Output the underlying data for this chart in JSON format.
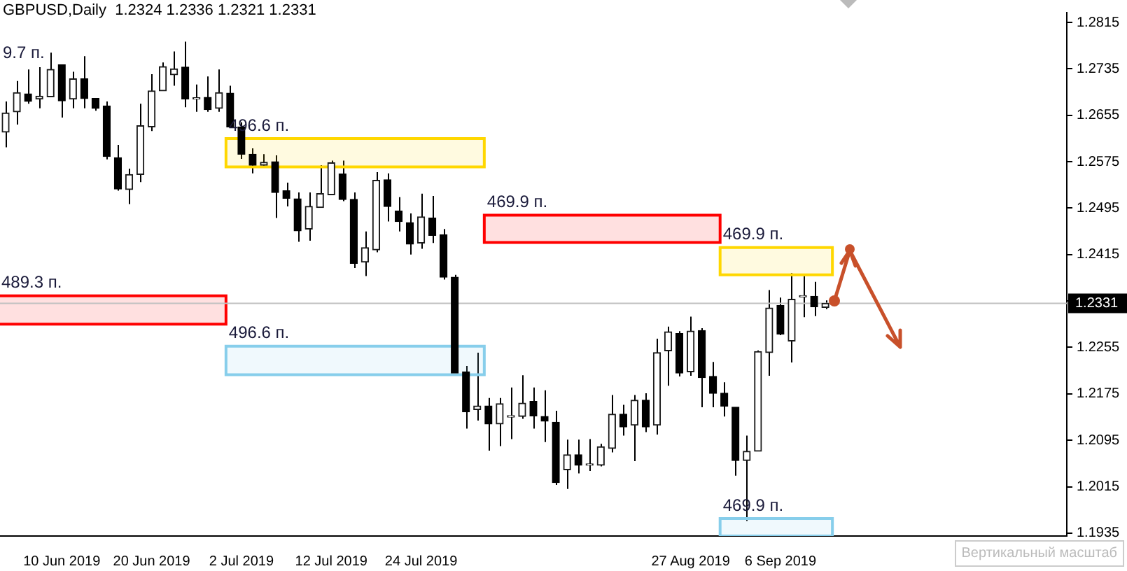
{
  "chart_data": {
    "type": "candlestick",
    "title": "GBPUSD,Daily  1.2324 1.2336 1.2321 1.2331",
    "categories": [
      null,
      null,
      null,
      null,
      null,
      "10 Jun 2019",
      null,
      null,
      null,
      null,
      null,
      null,
      null,
      "20 Jun 2019",
      null,
      null,
      null,
      null,
      null,
      null,
      null,
      "2 Jul 2019",
      null,
      null,
      null,
      null,
      null,
      null,
      null,
      "12 Jul 2019",
      null,
      null,
      null,
      null,
      null,
      null,
      null,
      "24 Jul 2019",
      null,
      null,
      null,
      null,
      null,
      null,
      null,
      null,
      null,
      null,
      null,
      null,
      null,
      null,
      null,
      null,
      null,
      null,
      null,
      null,
      null,
      null,
      null,
      "27 Aug 2019",
      null,
      null,
      null,
      null,
      null,
      null,
      null,
      "6 Sep 2019",
      null,
      null,
      null,
      null,
      null,
      null,
      null,
      null,
      null,
      null,
      null,
      null,
      null,
      null,
      null,
      null,
      null,
      null,
      null,
      null,
      null,
      null,
      null,
      null,
      null
    ],
    "ohlc": [
      [
        1.2626,
        1.2679,
        1.26,
        1.2659
      ],
      [
        1.2661,
        1.2714,
        1.2639,
        1.2694
      ],
      [
        1.2692,
        1.2734,
        1.2675,
        1.2679
      ],
      [
        1.2683,
        1.2738,
        1.2667,
        1.2688
      ],
      [
        1.2687,
        1.2763,
        1.2687,
        1.2734
      ],
      [
        1.2742,
        1.2742,
        1.2651,
        1.268
      ],
      [
        1.2683,
        1.273,
        1.2667,
        1.2718
      ],
      [
        1.2718,
        1.2757,
        1.2667,
        1.2684
      ],
      [
        1.2684,
        1.2684,
        1.2663,
        1.2667
      ],
      [
        1.2671,
        1.2679,
        1.2579,
        1.2584
      ],
      [
        1.2582,
        1.2604,
        1.2525,
        1.2528
      ],
      [
        1.2527,
        1.2563,
        1.2502,
        1.2553
      ],
      [
        1.2553,
        1.2675,
        1.254,
        1.2637
      ],
      [
        1.2635,
        1.2726,
        1.2628,
        1.2697
      ],
      [
        1.2697,
        1.2746,
        1.2697,
        1.2739
      ],
      [
        1.2725,
        1.2765,
        1.2706,
        1.2735
      ],
      [
        1.2738,
        1.2782,
        1.2669,
        1.2683
      ],
      [
        1.2683,
        1.2708,
        1.2661,
        1.2683
      ],
      [
        1.2686,
        1.2722,
        1.2661,
        1.2665
      ],
      [
        1.2667,
        1.2734,
        1.2661,
        1.2694
      ],
      [
        1.2693,
        1.2706,
        1.2635,
        1.2635
      ],
      [
        1.2635,
        1.2643,
        1.258,
        1.2588
      ],
      [
        1.2588,
        1.2598,
        1.2555,
        1.2569
      ],
      [
        1.2569,
        1.2588,
        1.2565,
        1.2574
      ],
      [
        1.2575,
        1.2586,
        1.2478,
        1.2522
      ],
      [
        1.2525,
        1.2539,
        1.2498,
        1.2512
      ],
      [
        1.2511,
        1.2522,
        1.2437,
        1.2456
      ],
      [
        1.2459,
        1.2522,
        1.2439,
        1.2498
      ],
      [
        1.2496,
        1.2569,
        1.2496,
        1.252
      ],
      [
        1.2518,
        1.2577,
        1.2518,
        1.2573
      ],
      [
        1.2554,
        1.2577,
        1.2507,
        1.251
      ],
      [
        1.251,
        1.2522,
        1.2392,
        1.24
      ],
      [
        1.2402,
        1.2455,
        1.2378,
        1.2427
      ],
      [
        1.2423,
        1.2557,
        1.2419,
        1.2543
      ],
      [
        1.2544,
        1.2555,
        1.2472,
        1.2498
      ],
      [
        1.249,
        1.2514,
        1.2455,
        1.2472
      ],
      [
        1.247,
        1.2486,
        1.2415,
        1.2433
      ],
      [
        1.2435,
        1.252,
        1.2425,
        1.248
      ],
      [
        1.2478,
        1.2516,
        1.2435,
        1.2448
      ],
      [
        1.2449,
        1.2459,
        1.2372,
        1.2376
      ],
      [
        1.2376,
        1.238,
        1.2211,
        1.2211
      ],
      [
        1.2213,
        1.2223,
        1.2115,
        1.2144
      ],
      [
        1.2148,
        1.2246,
        1.2129,
        1.2154
      ],
      [
        1.2154,
        1.2168,
        1.2077,
        1.2123
      ],
      [
        1.2123,
        1.2168,
        1.2085,
        1.2158
      ],
      [
        1.2135,
        1.2186,
        1.2097,
        1.2135
      ],
      [
        1.2136,
        1.2207,
        1.2132,
        1.2159
      ],
      [
        1.2162,
        1.2186,
        1.2115,
        1.2137
      ],
      [
        1.2136,
        1.2181,
        1.2092,
        1.2128
      ],
      [
        1.2126,
        1.2146,
        1.2018,
        1.2022
      ],
      [
        1.2044,
        1.2096,
        1.2011,
        1.207
      ],
      [
        1.207,
        1.2096,
        1.2038,
        1.2052
      ],
      [
        1.2052,
        1.2097,
        1.2042,
        1.2052
      ],
      [
        1.2052,
        1.2089,
        1.205,
        1.2084
      ],
      [
        1.2081,
        1.2173,
        1.2074,
        1.214
      ],
      [
        1.214,
        1.2156,
        1.2103,
        1.2118
      ],
      [
        1.2121,
        1.2173,
        1.2059,
        1.2164
      ],
      [
        1.2164,
        1.2176,
        1.2109,
        1.2118
      ],
      [
        1.2121,
        1.227,
        1.2105,
        1.2246
      ],
      [
        1.2249,
        1.2291,
        1.2189,
        1.2282
      ],
      [
        1.2279,
        1.2283,
        1.2205,
        1.2211
      ],
      [
        1.2213,
        1.2308,
        1.2206,
        1.2283
      ],
      [
        1.2284,
        1.2288,
        1.2152,
        1.2203
      ],
      [
        1.2205,
        1.223,
        1.2152,
        1.2176
      ],
      [
        1.2176,
        1.2195,
        1.2136,
        1.2154
      ],
      [
        1.2152,
        1.2152,
        1.2034,
        1.206
      ],
      [
        1.206,
        1.2103,
        1.1956,
        1.2076
      ],
      [
        1.2076,
        1.225,
        1.2076,
        1.2248
      ],
      [
        1.2246,
        1.2354,
        1.2206,
        1.2323
      ],
      [
        1.2327,
        1.2341,
        1.2276,
        1.2278
      ],
      [
        1.2266,
        1.2383,
        1.2229,
        1.2338
      ],
      [
        1.2342,
        1.2378,
        1.2307,
        1.2342
      ],
      [
        1.2343,
        1.2368,
        1.2309,
        1.2325
      ],
      [
        1.2324,
        1.2336,
        1.2321,
        1.2331
      ],
      null,
      null,
      null,
      null,
      null,
      null,
      null,
      null,
      null,
      null,
      null,
      null,
      null,
      null,
      null,
      null,
      null,
      null,
      null,
      null,
      null
    ],
    "ylim": [
      1.193,
      1.2832
    ],
    "yticks": [
      1.2815,
      1.2735,
      1.2655,
      1.2575,
      1.2495,
      1.2415,
      {
        "value": 1.2335,
        "label": null
      },
      1.2255,
      1.2175,
      1.2095,
      1.2015,
      1.1935
    ],
    "ref_lines": [
      {
        "axis": "y",
        "value": 1.2331,
        "label": "1.2331",
        "color": "#c0c0c0"
      }
    ],
    "bands": [
      {
        "axis": "y",
        "from": 1.2295,
        "to": 1.2344,
        "label": "489.3 п.",
        "color": "#ff0000"
      },
      {
        "axis": "y",
        "from": 1.2566,
        "to": 1.2615,
        "label": "496.6 п.",
        "color": "#ffd700"
      },
      {
        "axis": "y",
        "from": 1.2208,
        "to": 1.2257,
        "label": "496.6 п.",
        "color": "#87ceeb"
      },
      {
        "axis": "y",
        "from": 1.2436,
        "to": 1.2483,
        "label": "469.9 п.",
        "color": "#ff0000"
      },
      {
        "axis": "y",
        "from": 1.238,
        "to": 1.2427,
        "label": "469.9 п.",
        "color": "#ffd700"
      },
      {
        "axis": "y",
        "from": 1.193,
        "to": 1.196,
        "label": "469.9 п.",
        "color": "#87ceeb"
      }
    ],
    "annotations": [
      "9.7 п.",
      "Вертикальный масштаб"
    ]
  }
}
